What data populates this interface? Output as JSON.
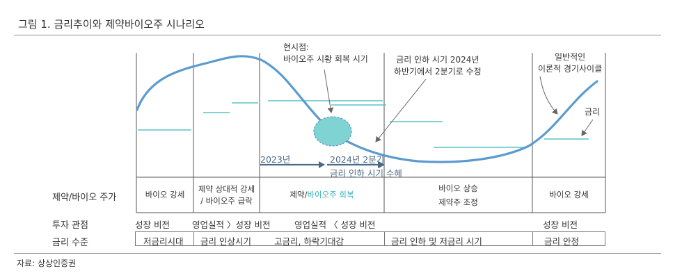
{
  "title": "그림 1. 금리추이와 제약바이오주 시나리오",
  "source": "자료: 상상인증권",
  "annotations": {
    "current_point": [
      "현시점:",
      "바이오주  시황 회복 시기"
    ],
    "rate_cut": [
      "금리 인하 시기 2024년",
      "하반기에서 2분기로 수정"
    ],
    "general_cycle": [
      "일반적인",
      "이론적 경기사이클"
    ],
    "rate_line": "금리"
  },
  "timeline_arrows": {
    "arrow1": "2023년",
    "arrow2_line1": "2024년 2분기",
    "arrow2_line2": "금리 인하 시기 수혜"
  },
  "rows": {
    "stock_label": "제약/바이오 주가",
    "view_label": "투자 관점",
    "rate_label": "금리 수준"
  },
  "stock_cells": {
    "c1": "바이오 강세",
    "c2_line1": "제약 상대적 강세",
    "c2_line2": "/ 바이오주  급락",
    "c3_part1": "제약/",
    "c3_part2": "바이오주  회복",
    "c4_line1": "바이오 상승",
    "c4_line2": "제약주 조정",
    "c5": "바이오 강세"
  },
  "views": {
    "v1": "성장 비전",
    "v2": "영업실적 〉성장 비전",
    "v3": "영업실적 〈 성장 비전",
    "v5": "성장 비전"
  },
  "rate_levels": {
    "r1": "저금리시대",
    "r2": "금리 인상시기",
    "r3": "고금리,  하락기대감",
    "r4": "금리 인하 및 저금리 시기",
    "r5": "금리 안정"
  },
  "colors": {
    "curve": "#5b9bcf",
    "rate_segment": "#5cc2c6",
    "circle_fill": "#7fd3d2",
    "timeline_arrow": "#4a6a88",
    "teal_text": "#3ab3b8"
  }
}
